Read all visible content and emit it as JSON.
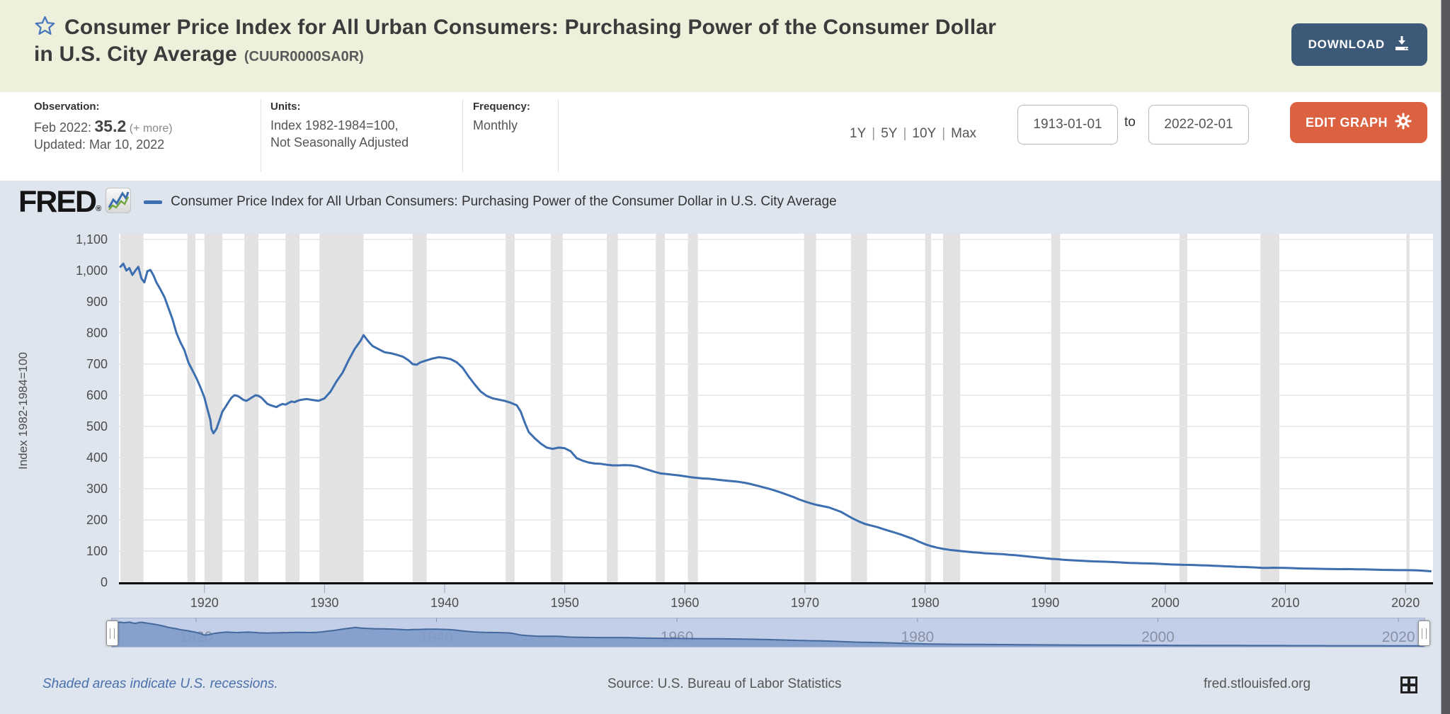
{
  "header": {
    "title": "Consumer Price Index for All Urban Consumers: Purchasing Power of the Consumer Dollar in U.S. City Average",
    "series_id": "(CUUR0000SA0R)",
    "download_label": "DOWNLOAD"
  },
  "meta": {
    "observation_label": "Observation:",
    "observation_date": "Feb 2022:",
    "observation_value": "35.2",
    "observation_more": "(+ more)",
    "updated": "Updated: Mar 10, 2022",
    "units_label": "Units:",
    "units_line1": "Index 1982-1984=100,",
    "units_line2": "Not Seasonally Adjusted",
    "frequency_label": "Frequency:",
    "frequency_value": "Monthly",
    "ranges": [
      "1Y",
      "5Y",
      "10Y",
      "Max"
    ],
    "range_separator": "|",
    "date_from": "1913-01-01",
    "to_label": "to",
    "date_to": "2022-02-01",
    "edit_graph_label": "EDIT GRAPH"
  },
  "brand": {
    "logo": "FRED",
    "reg": "®",
    "legend": "Consumer Price Index for All Urban Consumers: Purchasing Power of the Consumer Dollar in U.S. City Average"
  },
  "footer": {
    "recessions_note": "Shaded areas indicate U.S. recessions.",
    "source": "Source: U.S. Bureau of Labor Statistics",
    "site": "fred.stlouisfed.org"
  },
  "colors": {
    "header_bg": "#eef0dc",
    "panel_bg": "#dee5ee",
    "download_bg": "#3c5a78",
    "edit_bg": "#dc6140",
    "line": "#3d6fb0",
    "band": "#e2e2e2",
    "grid": "#e6e6e6",
    "axis": "#000000",
    "tick_text": "#4d4d4d",
    "link_blue": "#4a6fae",
    "text_dark": "#3b3b3b",
    "slider_bg": "#c3cee8",
    "slider_fill": "#7f9cc9",
    "slider_line": "#44699d",
    "slider_label": "#7e8798",
    "scrollbar": "#57595c"
  },
  "chart_data": {
    "type": "line",
    "title": "Consumer Price Index for All Urban Consumers: Purchasing Power of the Consumer Dollar in U.S. City Average",
    "xlabel": "",
    "ylabel": "Index 1982-1984=100",
    "x_range": [
      1913,
      2022.17
    ],
    "ylim": [
      0,
      1100
    ],
    "y_ticks": [
      0,
      100,
      200,
      300,
      400,
      500,
      600,
      700,
      800,
      900,
      1000,
      1100
    ],
    "x_ticks": [
      1920,
      1930,
      1940,
      1950,
      1960,
      1970,
      1980,
      1990,
      2000,
      2010,
      2020
    ],
    "slider_ticks": [
      1920,
      1940,
      1960,
      1980,
      2000,
      2020
    ],
    "grid": true,
    "legend_position": "top",
    "recessions": [
      [
        1913.0,
        1914.92
      ],
      [
        1918.58,
        1919.25
      ],
      [
        1920.0,
        1921.5
      ],
      [
        1923.33,
        1924.5
      ],
      [
        1926.75,
        1927.92
      ],
      [
        1929.58,
        1933.25
      ],
      [
        1937.33,
        1938.5
      ],
      [
        1945.08,
        1945.83
      ],
      [
        1948.83,
        1949.83
      ],
      [
        1953.5,
        1954.42
      ],
      [
        1957.58,
        1958.33
      ],
      [
        1960.25,
        1961.08
      ],
      [
        1969.92,
        1970.92
      ],
      [
        1973.83,
        1975.17
      ],
      [
        1980.0,
        1980.5
      ],
      [
        1981.5,
        1982.92
      ],
      [
        1990.5,
        1991.25
      ],
      [
        2001.17,
        2001.83
      ],
      [
        2007.92,
        2009.5
      ],
      [
        2020.08,
        2020.33
      ]
    ],
    "series": [
      {
        "name": "Consumer Price Index for All Urban Consumers: Purchasing Power of the Consumer Dollar in U.S. City Average",
        "points": [
          [
            1913,
            1012
          ],
          [
            1913.25,
            1022
          ],
          [
            1913.5,
            1000
          ],
          [
            1913.75,
            1008
          ],
          [
            1914,
            986
          ],
          [
            1914.25,
            1000
          ],
          [
            1914.5,
            1012
          ],
          [
            1914.75,
            975
          ],
          [
            1915,
            962
          ],
          [
            1915.25,
            998
          ],
          [
            1915.5,
            1002
          ],
          [
            1915.75,
            985
          ],
          [
            1916,
            962
          ],
          [
            1916.33,
            940
          ],
          [
            1916.67,
            915
          ],
          [
            1917,
            880
          ],
          [
            1917.33,
            845
          ],
          [
            1917.67,
            800
          ],
          [
            1918,
            770
          ],
          [
            1918.33,
            745
          ],
          [
            1918.67,
            705
          ],
          [
            1919,
            680
          ],
          [
            1919.33,
            655
          ],
          [
            1919.67,
            625
          ],
          [
            1920,
            592
          ],
          [
            1920.25,
            555
          ],
          [
            1920.5,
            520
          ],
          [
            1920.58,
            492
          ],
          [
            1920.75,
            478
          ],
          [
            1921,
            492
          ],
          [
            1921.25,
            520
          ],
          [
            1921.5,
            548
          ],
          [
            1921.75,
            562
          ],
          [
            1922,
            578
          ],
          [
            1922.25,
            592
          ],
          [
            1922.5,
            600
          ],
          [
            1922.75,
            598
          ],
          [
            1923,
            592
          ],
          [
            1923.25,
            585
          ],
          [
            1923.5,
            582
          ],
          [
            1923.75,
            588
          ],
          [
            1924,
            594
          ],
          [
            1924.25,
            600
          ],
          [
            1924.5,
            598
          ],
          [
            1924.75,
            592
          ],
          [
            1925,
            582
          ],
          [
            1925.25,
            572
          ],
          [
            1925.5,
            568
          ],
          [
            1925.75,
            565
          ],
          [
            1926,
            562
          ],
          [
            1926.25,
            568
          ],
          [
            1926.5,
            572
          ],
          [
            1926.75,
            570
          ],
          [
            1927,
            575
          ],
          [
            1927.25,
            580
          ],
          [
            1927.5,
            578
          ],
          [
            1927.75,
            582
          ],
          [
            1928,
            585
          ],
          [
            1928.5,
            588
          ],
          [
            1929,
            585
          ],
          [
            1929.5,
            582
          ],
          [
            1930,
            590
          ],
          [
            1930.5,
            612
          ],
          [
            1931,
            645
          ],
          [
            1931.5,
            672
          ],
          [
            1932,
            712
          ],
          [
            1932.5,
            748
          ],
          [
            1933,
            775
          ],
          [
            1933.25,
            793
          ],
          [
            1933.5,
            780
          ],
          [
            1933.75,
            768
          ],
          [
            1934,
            758
          ],
          [
            1934.5,
            748
          ],
          [
            1935,
            738
          ],
          [
            1935.5,
            735
          ],
          [
            1936,
            730
          ],
          [
            1936.5,
            724
          ],
          [
            1937,
            712
          ],
          [
            1937.33,
            700
          ],
          [
            1937.67,
            698
          ],
          [
            1938,
            706
          ],
          [
            1938.5,
            712
          ],
          [
            1939,
            718
          ],
          [
            1939.5,
            722
          ],
          [
            1940,
            720
          ],
          [
            1940.5,
            716
          ],
          [
            1941,
            706
          ],
          [
            1941.5,
            688
          ],
          [
            1942,
            660
          ],
          [
            1942.5,
            635
          ],
          [
            1943,
            612
          ],
          [
            1943.5,
            598
          ],
          [
            1944,
            590
          ],
          [
            1944.5,
            586
          ],
          [
            1945,
            582
          ],
          [
            1945.5,
            576
          ],
          [
            1946,
            568
          ],
          [
            1946.33,
            548
          ],
          [
            1946.67,
            512
          ],
          [
            1947,
            482
          ],
          [
            1947.5,
            462
          ],
          [
            1948,
            445
          ],
          [
            1948.5,
            432
          ],
          [
            1949,
            428
          ],
          [
            1949.5,
            432
          ],
          [
            1950,
            430
          ],
          [
            1950.5,
            420
          ],
          [
            1951,
            398
          ],
          [
            1951.5,
            390
          ],
          [
            1952,
            384
          ],
          [
            1952.5,
            381
          ],
          [
            1953,
            380
          ],
          [
            1953.5,
            377
          ],
          [
            1954,
            375
          ],
          [
            1954.5,
            375
          ],
          [
            1955,
            376
          ],
          [
            1955.5,
            375
          ],
          [
            1956,
            372
          ],
          [
            1956.5,
            366
          ],
          [
            1957,
            360
          ],
          [
            1957.5,
            354
          ],
          [
            1958,
            349
          ],
          [
            1958.5,
            347
          ],
          [
            1959,
            345
          ],
          [
            1959.5,
            343
          ],
          [
            1960,
            340
          ],
          [
            1960.5,
            337
          ],
          [
            1961,
            335
          ],
          [
            1961.5,
            333
          ],
          [
            1962,
            332
          ],
          [
            1962.5,
            330
          ],
          [
            1963,
            328
          ],
          [
            1963.5,
            326
          ],
          [
            1964,
            324
          ],
          [
            1964.5,
            322
          ],
          [
            1965,
            319
          ],
          [
            1965.5,
            315
          ],
          [
            1966,
            310
          ],
          [
            1966.5,
            305
          ],
          [
            1967,
            300
          ],
          [
            1967.5,
            294
          ],
          [
            1968,
            288
          ],
          [
            1968.5,
            281
          ],
          [
            1969,
            274
          ],
          [
            1969.5,
            266
          ],
          [
            1970,
            259
          ],
          [
            1970.5,
            253
          ],
          [
            1971,
            248
          ],
          [
            1971.5,
            244
          ],
          [
            1972,
            240
          ],
          [
            1972.5,
            233
          ],
          [
            1973,
            226
          ],
          [
            1973.5,
            215
          ],
          [
            1974,
            204
          ],
          [
            1974.5,
            195
          ],
          [
            1975,
            187
          ],
          [
            1975.5,
            182
          ],
          [
            1976,
            177
          ],
          [
            1976.5,
            171
          ],
          [
            1977,
            165
          ],
          [
            1977.5,
            159
          ],
          [
            1978,
            153
          ],
          [
            1978.5,
            146
          ],
          [
            1979,
            139
          ],
          [
            1979.5,
            130
          ],
          [
            1980,
            122
          ],
          [
            1980.5,
            116
          ],
          [
            1981,
            111
          ],
          [
            1981.5,
            107
          ],
          [
            1982,
            104
          ],
          [
            1982.5,
            102
          ],
          [
            1983,
            100
          ],
          [
            1983.5,
            98
          ],
          [
            1984,
            96
          ],
          [
            1984.5,
            95
          ],
          [
            1985,
            93
          ],
          [
            1985.5,
            92
          ],
          [
            1986,
            91
          ],
          [
            1986.5,
            90
          ],
          [
            1987,
            88
          ],
          [
            1987.5,
            87
          ],
          [
            1988,
            85
          ],
          [
            1988.5,
            83
          ],
          [
            1989,
            81
          ],
          [
            1989.5,
            79
          ],
          [
            1990,
            77
          ],
          [
            1990.5,
            75
          ],
          [
            1991,
            74
          ],
          [
            1991.5,
            72
          ],
          [
            1992,
            71
          ],
          [
            1992.5,
            70
          ],
          [
            1993,
            69
          ],
          [
            1993.5,
            68
          ],
          [
            1994,
            67
          ],
          [
            1994.5,
            66.5
          ],
          [
            1995,
            66
          ],
          [
            1995.5,
            65
          ],
          [
            1996,
            64
          ],
          [
            1996.5,
            63
          ],
          [
            1997,
            62
          ],
          [
            1997.5,
            61.5
          ],
          [
            1998,
            61
          ],
          [
            1998.5,
            60.5
          ],
          [
            1999,
            60
          ],
          [
            1999.5,
            59
          ],
          [
            2000,
            58
          ],
          [
            2000.5,
            57
          ],
          [
            2001,
            56.5
          ],
          [
            2001.5,
            56
          ],
          [
            2002,
            55.6
          ],
          [
            2002.5,
            55
          ],
          [
            2003,
            54.3
          ],
          [
            2003.5,
            53.8
          ],
          [
            2004,
            53
          ],
          [
            2004.5,
            52.2
          ],
          [
            2005,
            51.2
          ],
          [
            2005.5,
            50.6
          ],
          [
            2006,
            49.6
          ],
          [
            2006.5,
            49
          ],
          [
            2007,
            48.2
          ],
          [
            2007.5,
            47.5
          ],
          [
            2008,
            46.4
          ],
          [
            2008.5,
            45.8
          ],
          [
            2009,
            46.6
          ],
          [
            2009.5,
            46.4
          ],
          [
            2010,
            45.9
          ],
          [
            2010.5,
            45.5
          ],
          [
            2011,
            44.5
          ],
          [
            2011.5,
            44.2
          ],
          [
            2012,
            43.6
          ],
          [
            2012.5,
            43.4
          ],
          [
            2013,
            42.9
          ],
          [
            2013.5,
            42.7
          ],
          [
            2014,
            42.2
          ],
          [
            2014.5,
            42
          ],
          [
            2015,
            42.2
          ],
          [
            2015.5,
            42.1
          ],
          [
            2016,
            41.7
          ],
          [
            2016.5,
            41.4
          ],
          [
            2017,
            40.8
          ],
          [
            2017.5,
            40.5
          ],
          [
            2018,
            39.8
          ],
          [
            2018.5,
            39.5
          ],
          [
            2019,
            39.1
          ],
          [
            2019.5,
            38.9
          ],
          [
            2020,
            38.8
          ],
          [
            2020.5,
            38.6
          ],
          [
            2021,
            37.9
          ],
          [
            2021.5,
            37
          ],
          [
            2022.08,
            35.2
          ]
        ]
      }
    ]
  }
}
